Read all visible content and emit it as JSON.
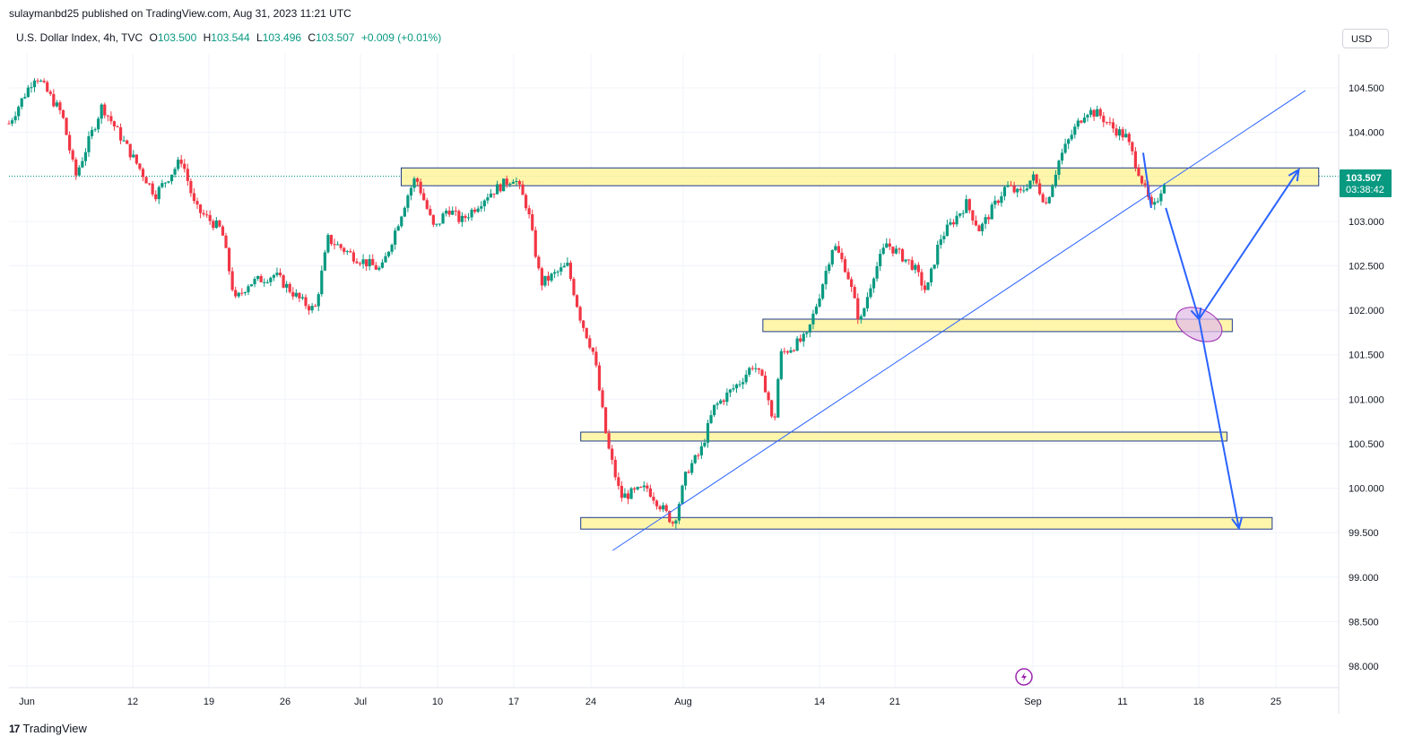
{
  "header": {
    "publisher_line": "sulaymanbd25 published on TradingView.com, Aug 31, 2023 11:21 UTC",
    "symbol": "U.S. Dollar Index, 4h, TVC",
    "open_label": "O",
    "open": "103.500",
    "high_label": "H",
    "high": "103.544",
    "low_label": "L",
    "low": "103.496",
    "close_label": "C",
    "close": "103.507",
    "change": "+0.009 (+0.01%)"
  },
  "currency_button": "USD",
  "footer": {
    "brand": "TradingView",
    "logo_icon": "tradingview-logo-icon"
  },
  "colors": {
    "up": "#089981",
    "down": "#f23645",
    "zone_fill": "#fff59d",
    "zone_border": "#1e3a8a",
    "arrow": "#2962ff",
    "trendline": "#2962ff"
  },
  "chart_data": {
    "type": "candlestick",
    "title": "",
    "xlabel": "",
    "ylabel": "",
    "ylim": [
      97.75,
      104.9
    ],
    "x_ticks": [
      "Jun",
      "12",
      "19",
      "26",
      "Jul",
      "10",
      "17",
      "24",
      "Aug",
      "14",
      "21",
      "Sep",
      "11",
      "18",
      "25"
    ],
    "y_ticks": [
      "104.500",
      "104.000",
      "103.500",
      "103.000",
      "102.500",
      "102.000",
      "101.500",
      "101.000",
      "100.500",
      "100.000",
      "99.500",
      "99.000",
      "98.500",
      "98.000"
    ],
    "last_price_label": "103.507",
    "countdown_label": "03:38:42",
    "grid": true,
    "price_path": [
      [
        0,
        104.1
      ],
      [
        2,
        104.65
      ],
      [
        4,
        104.2
      ],
      [
        5,
        103.5
      ],
      [
        7,
        104.3
      ],
      [
        9,
        103.8
      ],
      [
        11,
        103.3
      ],
      [
        13,
        103.7
      ],
      [
        14,
        103.15
      ],
      [
        16,
        102.9
      ],
      [
        17,
        102.1
      ],
      [
        18,
        102.3
      ],
      [
        20,
        102.4
      ],
      [
        22,
        102.1
      ],
      [
        23,
        102.0
      ],
      [
        24,
        102.8
      ],
      [
        26,
        102.6
      ],
      [
        28,
        102.45
      ],
      [
        30,
        103.3
      ],
      [
        30.6,
        103.5
      ],
      [
        32,
        102.9
      ],
      [
        33,
        103.15
      ],
      [
        34,
        103.0
      ],
      [
        36,
        103.3
      ],
      [
        38,
        103.5
      ],
      [
        39,
        103.15
      ],
      [
        40,
        102.3
      ],
      [
        42,
        102.5
      ],
      [
        43,
        101.9
      ],
      [
        44,
        101.5
      ],
      [
        45,
        100.5
      ],
      [
        46,
        99.9
      ],
      [
        48,
        100.0
      ],
      [
        50,
        99.6
      ],
      [
        51,
        100.2
      ],
      [
        52,
        100.4
      ],
      [
        53,
        100.9
      ],
      [
        55,
        101.2
      ],
      [
        56,
        101.4
      ],
      [
        57,
        101.1
      ],
      [
        57.5,
        100.65
      ],
      [
        58,
        101.5
      ],
      [
        60,
        101.7
      ],
      [
        61,
        102.2
      ],
      [
        62,
        102.75
      ],
      [
        63,
        102.45
      ],
      [
        64,
        101.85
      ],
      [
        65,
        102.4
      ],
      [
        66,
        102.75
      ],
      [
        68,
        102.5
      ],
      [
        69,
        102.2
      ],
      [
        70,
        102.8
      ],
      [
        72,
        103.2
      ],
      [
        73,
        102.9
      ],
      [
        75,
        103.4
      ],
      [
        76,
        103.3
      ],
      [
        77,
        103.5
      ],
      [
        78,
        103.2
      ],
      [
        79,
        103.7
      ],
      [
        80,
        104.0
      ],
      [
        81,
        104.25
      ],
      [
        82,
        104.2
      ],
      [
        83,
        104.05
      ],
      [
        84,
        103.95
      ],
      [
        85,
        103.55
      ],
      [
        86,
        103.1
      ],
      [
        87,
        103.507
      ]
    ],
    "zones": [
      {
        "x_start": 29.5,
        "x_end": 98.5,
        "y_low": 103.4,
        "y_high": 103.6
      },
      {
        "x_start": 56.7,
        "x_end": 92.0,
        "y_low": 101.76,
        "y_high": 101.9
      },
      {
        "x_start": 43.0,
        "x_end": 91.6,
        "y_low": 100.53,
        "y_high": 100.63
      },
      {
        "x_start": 43.0,
        "x_end": 95.0,
        "y_low": 99.54,
        "y_high": 99.67
      }
    ],
    "trendline": {
      "x1": 45.4,
      "y1": 99.3,
      "x2": 97.5,
      "y2": 104.47
    },
    "arrows": [
      {
        "x1": 85.3,
        "y1": 103.77,
        "x2": 85.9,
        "y2": 103.15
      },
      {
        "x1": 87.0,
        "y1": 103.15,
        "x2": 89.5,
        "y2": 101.9
      },
      {
        "x1": 89.5,
        "y1": 101.9,
        "x2": 97.0,
        "y2": 103.58
      },
      {
        "x1": 89.5,
        "y1": 101.9,
        "x2": 92.5,
        "y2": 99.55
      }
    ],
    "ellipse": {
      "x": 89.5,
      "y": 101.84
    }
  }
}
